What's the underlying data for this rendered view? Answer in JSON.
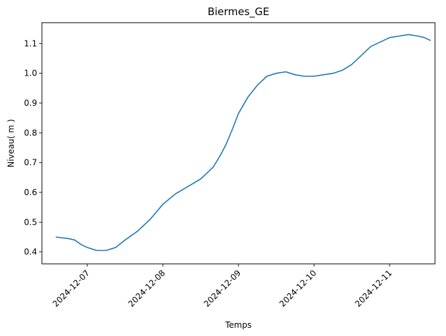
{
  "chart_data": {
    "type": "line",
    "title": "Biermes_GE",
    "xlabel": "Temps",
    "ylabel": "Niveau( m )",
    "grid": false,
    "xlim": [
      "2024-12-06 09:36",
      "2024-12-11 14:24"
    ],
    "ylim": [
      0.36,
      1.17
    ],
    "x_ticks": [
      "2024-12-07",
      "2024-12-08",
      "2024-12-09",
      "2024-12-10",
      "2024-12-11"
    ],
    "y_ticks": [
      "0.4",
      "0.5",
      "0.6",
      "0.7",
      "0.8",
      "0.9",
      "1.0",
      "1.1"
    ],
    "series": [
      {
        "color": "#1f77b4",
        "x": [
          "2024-12-06 14:00",
          "2024-12-06 18:00",
          "2024-12-06 20:00",
          "2024-12-06 22:00",
          "2024-12-07 00:00",
          "2024-12-07 03:00",
          "2024-12-07 06:00",
          "2024-12-07 09:00",
          "2024-12-07 12:00",
          "2024-12-07 16:00",
          "2024-12-07 20:00",
          "2024-12-08 00:00",
          "2024-12-08 04:00",
          "2024-12-08 08:00",
          "2024-12-08 12:00",
          "2024-12-08 16:00",
          "2024-12-08 18:00",
          "2024-12-08 20:00",
          "2024-12-08 22:00",
          "2024-12-09 00:00",
          "2024-12-09 03:00",
          "2024-12-09 06:00",
          "2024-12-09 09:00",
          "2024-12-09 12:00",
          "2024-12-09 15:00",
          "2024-12-09 18:00",
          "2024-12-09 21:00",
          "2024-12-10 00:00",
          "2024-12-10 03:00",
          "2024-12-10 06:00",
          "2024-12-10 09:00",
          "2024-12-10 12:00",
          "2024-12-10 15:00",
          "2024-12-10 18:00",
          "2024-12-10 21:00",
          "2024-12-11 00:00",
          "2024-12-11 03:00",
          "2024-12-11 06:00",
          "2024-12-11 09:00",
          "2024-12-11 11:00",
          "2024-12-11 13:00"
        ],
        "y": [
          0.45,
          0.445,
          0.44,
          0.425,
          0.415,
          0.405,
          0.405,
          0.415,
          0.44,
          0.47,
          0.51,
          0.56,
          0.595,
          0.62,
          0.645,
          0.685,
          0.72,
          0.76,
          0.81,
          0.865,
          0.92,
          0.96,
          0.99,
          1.0,
          1.005,
          0.995,
          0.99,
          0.99,
          0.995,
          1.0,
          1.01,
          1.03,
          1.06,
          1.09,
          1.105,
          1.12,
          1.125,
          1.13,
          1.125,
          1.12,
          1.11
        ]
      }
    ]
  }
}
